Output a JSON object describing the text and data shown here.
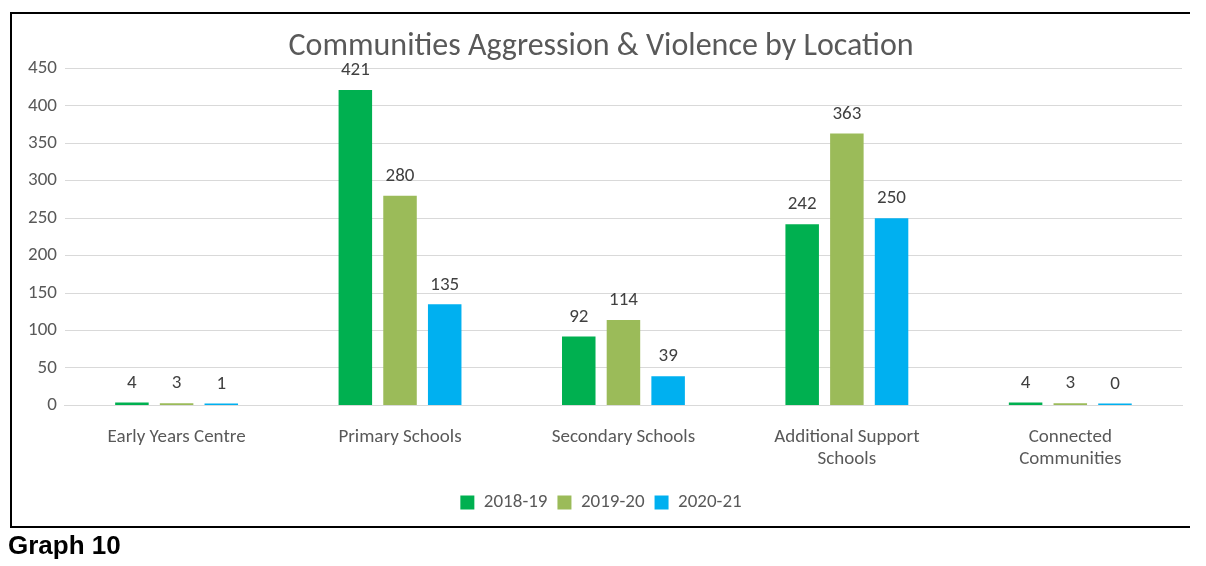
{
  "chart_data": {
    "type": "bar",
    "title": "Communities Aggression & Violence by Location",
    "categories": [
      "Early Years Centre",
      "Primary Schools",
      "Secondary Schools",
      "Additional Support Schools",
      "Connected Communities"
    ],
    "series": [
      {
        "name": "2018-19",
        "color": "#00b050",
        "values": [
          4,
          421,
          92,
          242,
          4
        ]
      },
      {
        "name": "2019-20",
        "color": "#9bbb59",
        "values": [
          3,
          280,
          114,
          363,
          3
        ]
      },
      {
        "name": "2020-21",
        "color": "#00b0f0",
        "values": [
          1,
          135,
          39,
          250,
          0
        ]
      }
    ],
    "ylim": [
      0,
      450
    ],
    "yticks": [
      0,
      50,
      100,
      150,
      200,
      250,
      300,
      350,
      400,
      450
    ],
    "grid": "y",
    "legend": "bottom",
    "data_labels": true,
    "annotations": [
      "Graph 10"
    ]
  }
}
